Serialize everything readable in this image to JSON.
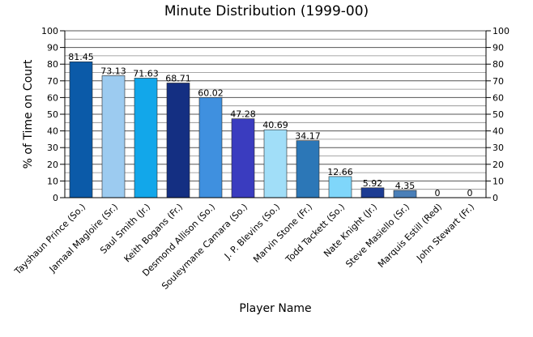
{
  "chart_data": {
    "type": "bar",
    "title": "Minute Distribution (1999-00)",
    "xlabel": "Player Name",
    "ylabel": "% of Time on Court",
    "ylim": [
      0,
      100
    ],
    "yticks": [
      0,
      10,
      20,
      30,
      40,
      50,
      60,
      70,
      80,
      90,
      100
    ],
    "grid": true,
    "categories": [
      "Tayshaun Prince (So.)",
      "Jamaal Magloire (Sr.)",
      "Saul Smith (Jr.)",
      "Keith Bogans (Fr.)",
      "Desmond Allison (So.)",
      "Souleymane Camara (So.)",
      "J. P. Blevins (So.)",
      "Marvin Stone (Fr.)",
      "Todd Tackett (So.)",
      "Nate Knight (Jr.)",
      "Steve Masiello (Sr.)",
      "Marquis Estill (Red)",
      "John Stewart (Fr.)"
    ],
    "values": [
      81.45,
      73.13,
      71.63,
      68.71,
      60.02,
      47.28,
      40.69,
      34.17,
      12.66,
      5.92,
      4.35,
      0,
      0
    ],
    "value_labels": [
      "81.45",
      "73.13",
      "71.63",
      "68.71",
      "60.02",
      "47.28",
      "40.69",
      "34.17",
      "12.66",
      "5.92",
      "4.35",
      "0",
      "0"
    ],
    "colors": [
      "#0b5aa8",
      "#9ccbf0",
      "#12a7ea",
      "#142f82",
      "#3f90df",
      "#3a3cbf",
      "#a1def8",
      "#2c77b7",
      "#7fd6fa",
      "#1d3c93",
      "#4a7fb8",
      "#9db6e3",
      "#2a4fae"
    ]
  }
}
